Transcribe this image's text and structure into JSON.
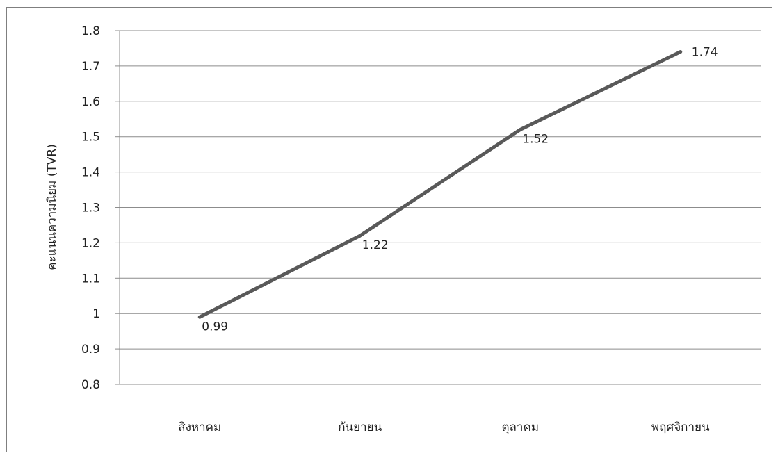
{
  "chart_data": {
    "type": "line",
    "categories": [
      "สิงหาคม",
      "กันยายน",
      "ตุลาคม",
      "พฤศจิกายน"
    ],
    "series": [
      {
        "values": [
          0.99,
          1.22,
          1.52,
          1.74
        ]
      }
    ],
    "data_labels": [
      "0.99",
      "1.22",
      "1.52",
      "1.74"
    ],
    "ylabel": "คะแนนความนิยม (TVR)",
    "xlabel": "",
    "ylim": [
      0.8,
      1.8
    ],
    "yticks": [
      "0.8",
      "0.9",
      "1",
      "1.1",
      "1.2",
      "1.3",
      "1.4",
      "1.5",
      "1.6",
      "1.7",
      "1.8"
    ],
    "grid": true,
    "legend": "none",
    "line_color": "#595959"
  }
}
